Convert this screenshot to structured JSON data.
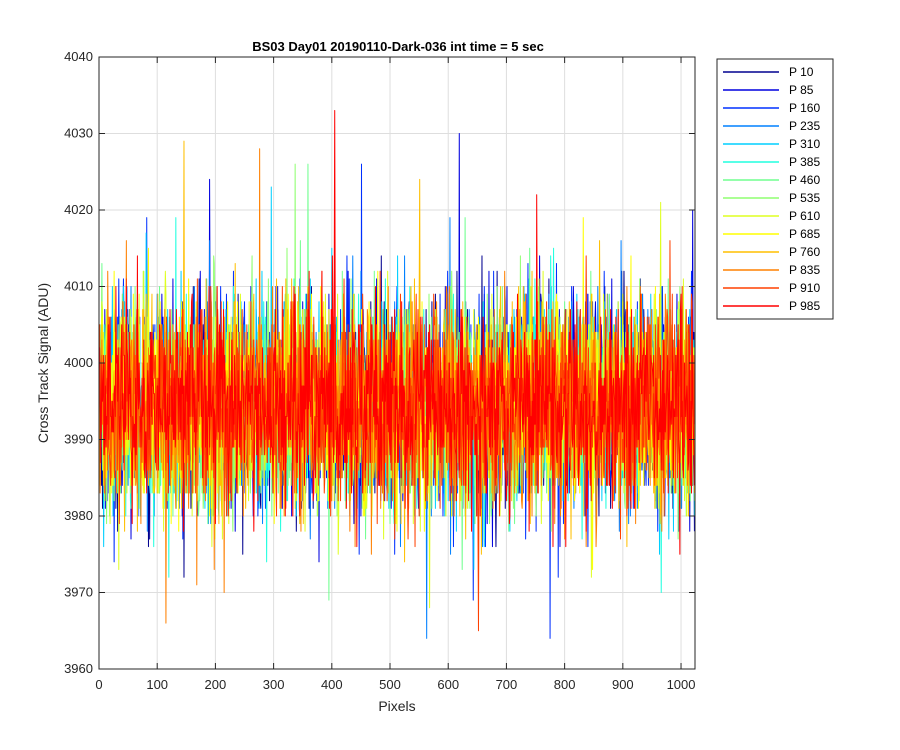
{
  "chart_data": {
    "type": "line",
    "title": "BS03 Day01 20190110-Dark-036 int time = 5 sec",
    "xlabel": "Pixels",
    "ylabel": "Cross Track Signal (ADU)",
    "xlim": [
      0,
      1024
    ],
    "ylim": [
      3960,
      4040
    ],
    "xticks": [
      0,
      100,
      200,
      300,
      400,
      500,
      600,
      700,
      800,
      900,
      1000
    ],
    "yticks": [
      3960,
      3970,
      3980,
      3990,
      4000,
      4010,
      4020,
      4030,
      4040
    ],
    "xtick_labels": [
      "0",
      "100",
      "200",
      "300",
      "400",
      "500",
      "600",
      "700",
      "800",
      "900",
      "1000"
    ],
    "ytick_labels": [
      "3960",
      "3970",
      "3980",
      "3990",
      "4000",
      "4010",
      "4020",
      "4030",
      "4040"
    ],
    "grid": true,
    "legend_position": "outside-right-top",
    "noise_model": {
      "mean": 3994.5,
      "std": 6.5,
      "n_points": 1024
    },
    "series": [
      {
        "name": "P 10",
        "color": "#00008f",
        "notable_peaks": []
      },
      {
        "name": "P 85",
        "color": "#0000df",
        "notable_peaks": [
          [
            190,
            4024
          ],
          [
            619,
            4030
          ],
          [
            1020,
            4020
          ]
        ]
      },
      {
        "name": "P 160",
        "color": "#0030ff",
        "notable_peaks": [
          [
            451,
            4026
          ],
          [
            775,
            3964
          ]
        ]
      },
      {
        "name": "P 235",
        "color": "#0080ff",
        "notable_peaks": [
          [
            563,
            3964
          ]
        ]
      },
      {
        "name": "P 310",
        "color": "#00cfff",
        "notable_peaks": [
          [
            296,
            4023
          ]
        ]
      },
      {
        "name": "P 385",
        "color": "#20ffdf",
        "notable_peaks": []
      },
      {
        "name": "P 460",
        "color": "#70ff8f",
        "notable_peaks": [
          [
            359,
            4026
          ]
        ]
      },
      {
        "name": "P 535",
        "color": "#8fff70",
        "notable_peaks": [
          [
            337,
            4026
          ]
        ]
      },
      {
        "name": "P 610",
        "color": "#dfff20",
        "notable_peaks": [
          [
            965,
            4021
          ]
        ]
      },
      {
        "name": "P 685",
        "color": "#ffff00",
        "notable_peaks": []
      },
      {
        "name": "P 760",
        "color": "#ffbf00",
        "notable_peaks": [
          [
            146,
            4029
          ],
          [
            551,
            4024
          ]
        ]
      },
      {
        "name": "P 835",
        "color": "#ff8000",
        "notable_peaks": [
          [
            276,
            4028
          ],
          [
            115,
            3966
          ]
        ]
      },
      {
        "name": "P 910",
        "color": "#ff4000",
        "notable_peaks": [
          [
            652,
            3965
          ]
        ]
      },
      {
        "name": "P 985",
        "color": "#ff0000",
        "notable_peaks": [
          [
            405,
            4033
          ],
          [
            752,
            4022
          ]
        ]
      }
    ]
  }
}
